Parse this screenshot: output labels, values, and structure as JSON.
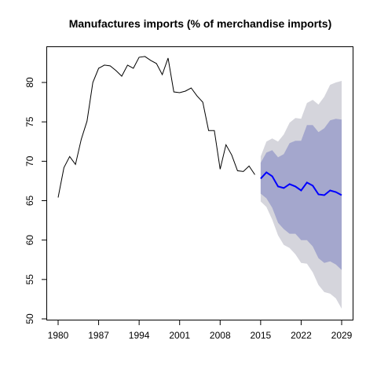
{
  "chart_data": {
    "type": "line",
    "title": "Manufactures imports (% of merchandise imports)",
    "xlim": [
      1980,
      2029
    ],
    "ylim": [
      50,
      85
    ],
    "x_ticks": [
      1980,
      1987,
      1994,
      2001,
      2008,
      2015,
      2022,
      2029
    ],
    "y_ticks": [
      50,
      55,
      60,
      65,
      70,
      75,
      80
    ],
    "grid": false,
    "colors": {
      "history": "#000000",
      "forecast": "#0000ff",
      "band_80": "#a4a7cd",
      "band_95": "#d5d5dc"
    },
    "series": [
      {
        "kind": "history",
        "x": [
          1980,
          1981,
          1982,
          1983,
          1984,
          1985,
          1986,
          1987,
          1988,
          1989,
          1990,
          1991,
          1992,
          1993,
          1994,
          1995,
          1996,
          1997,
          1998,
          1999,
          2000,
          2001,
          2002,
          2003,
          2004,
          2005,
          2006,
          2007,
          2008,
          2009,
          2010,
          2011,
          2012,
          2013,
          2014
        ],
        "values": [
          65.4,
          69.2,
          70.6,
          69.6,
          72.8,
          75.1,
          80.0,
          81.8,
          82.2,
          82.1,
          81.5,
          80.8,
          82.2,
          81.8,
          83.2,
          83.3,
          82.8,
          82.4,
          81.0,
          83.1,
          78.8,
          78.7,
          78.9,
          79.3,
          78.3,
          77.5,
          73.9,
          73.9,
          69.0,
          72.1,
          70.8,
          68.8,
          68.7,
          69.4,
          68.3
        ]
      },
      {
        "kind": "forecast",
        "x": [
          2015,
          2016,
          2017,
          2018,
          2019,
          2020,
          2021,
          2022,
          2023,
          2024,
          2025,
          2026,
          2027,
          2028,
          2029
        ],
        "values": [
          67.8,
          68.6,
          68.1,
          66.8,
          66.6,
          67.1,
          66.8,
          66.3,
          67.3,
          66.9,
          65.8,
          65.7,
          66.3,
          66.1,
          65.7
        ],
        "lo80": [
          65.9,
          65.3,
          64.1,
          62.2,
          61.4,
          60.8,
          60.8,
          60.0,
          60.0,
          59.2,
          57.7,
          57.1,
          57.3,
          56.9,
          56.2
        ],
        "hi80": [
          69.8,
          71.1,
          71.4,
          70.5,
          70.9,
          72.3,
          72.6,
          72.6,
          74.6,
          74.6,
          73.7,
          74.2,
          75.2,
          75.4,
          75.3
        ],
        "lo95": [
          64.9,
          64.2,
          62.6,
          60.6,
          59.4,
          59.0,
          58.2,
          57.1,
          57.0,
          55.9,
          54.3,
          53.4,
          53.2,
          52.6,
          51.3
        ],
        "hi95": [
          70.6,
          72.5,
          72.9,
          72.5,
          73.4,
          74.9,
          75.5,
          75.4,
          77.4,
          77.8,
          77.2,
          78.2,
          79.7,
          80.0,
          80.2
        ]
      }
    ]
  }
}
